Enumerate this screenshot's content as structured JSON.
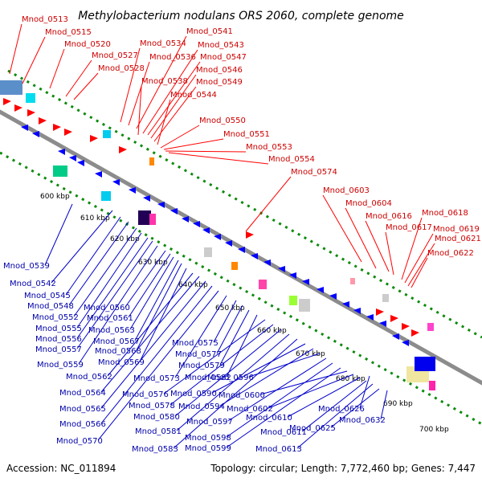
{
  "title": "Methylobacterium nodulans ORS 2060, complete genome",
  "footer": {
    "accession": "Accession: NC_011894",
    "summary": "Topology: circular; Length: 7,772,460 bp; Genes: 7,447"
  },
  "colors": {
    "forward": "#ff0000",
    "reverse": "#0000ff",
    "forward_label": "#cc0000",
    "reverse_label": "#0000aa",
    "backbone": "#808080",
    "tick": "#008000"
  },
  "kbp_ticks": [
    "600 kbp",
    "610 kbp",
    "620 kbp",
    "630 kbp",
    "640 kbp",
    "650 kbp",
    "660 kbp",
    "670 kbp",
    "680 kbp",
    "690 kbp",
    "700 kbp"
  ],
  "forward_labels": [
    "Mnod_0513",
    "Mnod_0515",
    "Mnod_0520",
    "Mnod_0527",
    "Mnod_0528",
    "Mnod_0534",
    "Mnod_0536",
    "Mnod_0538",
    "Mnod_0541",
    "Mnod_0543",
    "Mnod_0547",
    "Mnod_0546",
    "Mnod_0549",
    "Mnod_0544",
    "Mnod_0550",
    "Mnod_0551",
    "Mnod_0553",
    "Mnod_0554",
    "Mnod_0574",
    "Mnod_0603",
    "Mnod_0604",
    "Mnod_0616",
    "Mnod_0617",
    "Mnod_0618",
    "Mnod_0619",
    "Mnod_0621",
    "Mnod_0622"
  ],
  "reverse_labels": [
    "Mnod_0539",
    "Mnod_0542",
    "Mnod_0545",
    "Mnod_0548",
    "Mnod_0552",
    "Mnod_0555",
    "Mnod_0556",
    "Mnod_0557",
    "Mnod_0559",
    "Mnod_0560",
    "Mnod_0561",
    "Mnod_0563",
    "Mnod_0567",
    "Mnod_0568",
    "Mnod_0569",
    "Mnod_0562",
    "Mnod_0564",
    "Mnod_0565",
    "Mnod_0566",
    "Mnod_0570",
    "Mnod_0573",
    "Mnod_0575",
    "Mnod_0577",
    "Mnod_0579",
    "Mnod_0582",
    "Mnod_0576",
    "Mnod_0578",
    "Mnod_0580",
    "Mnod_0581",
    "Mnod_0583",
    "Mnod_0590",
    "Mnod_0594",
    "Mnod_0596",
    "Mnod_0597",
    "Mnod_0598",
    "Mnod_0599",
    "Mnod_0600",
    "Mnod_0602",
    "Mnod_0610",
    "Mnod_0611",
    "Mnod_0613",
    "Mnod_0625",
    "Mnod_0626",
    "Mnod_0632"
  ]
}
